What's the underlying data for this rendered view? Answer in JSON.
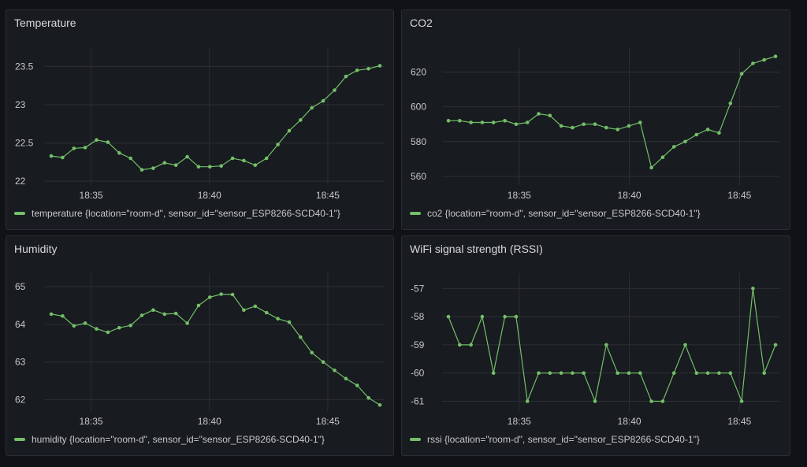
{
  "colors": {
    "series": "#73bf69",
    "grid": "#2c2f34",
    "background": "#111217",
    "panel": "#181b1f"
  },
  "panels": [
    {
      "title": "Temperature",
      "legend": "temperature {location=\"room-d\", sensor_id=\"sensor_ESP8266-SCD40-1\"}",
      "chart_data": {
        "type": "line",
        "title": "Temperature",
        "x_ticks": [
          "18:35",
          "18:40",
          "18:45"
        ],
        "y_ticks": [
          "22",
          "22.5",
          "23",
          "23.5"
        ],
        "ylim": [
          21.95,
          23.7
        ],
        "x_range_minutes": [
          -1.95,
          12.4
        ],
        "series": [
          {
            "name": "temperature {location=\"room-d\", sensor_id=\"sensor_ESP8266-SCD40-1\"}",
            "values": [
              22.33,
              22.31,
              22.43,
              22.44,
              22.54,
              22.51,
              22.37,
              22.3,
              22.15,
              22.17,
              22.24,
              22.21,
              22.32,
              22.19,
              22.19,
              22.2,
              22.3,
              22.27,
              22.21,
              22.3,
              22.48,
              22.66,
              22.8,
              22.96,
              23.05,
              23.19,
              23.37,
              23.45,
              23.47,
              23.51
            ]
          }
        ]
      }
    },
    {
      "title": "CO2",
      "legend": "co2 {location=\"room-d\", sensor_id=\"sensor_ESP8266-SCD40-1\"}",
      "chart_data": {
        "type": "line",
        "title": "CO2",
        "x_ticks": [
          "18:35",
          "18:40",
          "18:45"
        ],
        "y_ticks": [
          "560",
          "580",
          "600",
          "620"
        ],
        "ylim": [
          555,
          632
        ],
        "x_range_minutes": [
          -3.5,
          11.85
        ],
        "series": [
          {
            "name": "co2 {location=\"room-d\", sensor_id=\"sensor_ESP8266-SCD40-1\"}",
            "values": [
              592,
              592,
              591,
              591,
              591,
              592,
              590,
              591,
              596,
              595,
              589,
              588,
              590,
              590,
              588,
              587,
              589,
              591,
              565,
              571,
              577,
              580,
              584,
              587,
              585,
              602,
              619,
              625,
              627,
              629
            ]
          }
        ]
      }
    },
    {
      "title": "Humidity",
      "legend": "humidity {location=\"room-d\", sensor_id=\"sensor_ESP8266-SCD40-1\"}",
      "chart_data": {
        "type": "line",
        "title": "Humidity",
        "x_ticks": [
          "18:35",
          "18:40",
          "18:45"
        ],
        "y_ticks": [
          "62",
          "63",
          "64",
          "65"
        ],
        "ylim": [
          61.7,
          65.25
        ],
        "x_range_minutes": [
          -1.95,
          12.4
        ],
        "series": [
          {
            "name": "humidity {location=\"room-d\", sensor_id=\"sensor_ESP8266-SCD40-1\"}",
            "values": [
              64.27,
              64.22,
              63.96,
              64.03,
              63.88,
              63.79,
              63.91,
              63.97,
              64.24,
              64.38,
              64.27,
              64.29,
              64.03,
              64.5,
              64.72,
              64.8,
              64.79,
              64.38,
              64.48,
              64.31,
              64.15,
              64.06,
              63.66,
              63.25,
              63.0,
              62.78,
              62.56,
              62.38,
              62.05,
              61.86
            ]
          }
        ]
      }
    },
    {
      "title": "WiFi signal strength (RSSI)",
      "legend": "rssi {location=\"room-d\", sensor_id=\"sensor_ESP8266-SCD40-1\"}",
      "chart_data": {
        "type": "line",
        "title": "WiFi signal strength (RSSI)",
        "x_ticks": [
          "18:35",
          "18:40",
          "18:45"
        ],
        "y_ticks": [
          "-61",
          "-60",
          "-59",
          "-58",
          "-57"
        ],
        "ylim": [
          -61.35,
          -56.6
        ],
        "x_range_minutes": [
          -3.5,
          11.85
        ],
        "series": [
          {
            "name": "rssi {location=\"room-d\", sensor_id=\"sensor_ESP8266-SCD40-1\"}",
            "values": [
              -58,
              -59,
              -59,
              -58,
              -60,
              -58,
              -58,
              -61,
              -60,
              -60,
              -60,
              -60,
              -60,
              -61,
              -59,
              -60,
              -60,
              -60,
              -61,
              -61,
              -60,
              -59,
              -60,
              -60,
              -60,
              -60,
              -61,
              -57,
              -60,
              -59
            ]
          }
        ]
      }
    }
  ]
}
